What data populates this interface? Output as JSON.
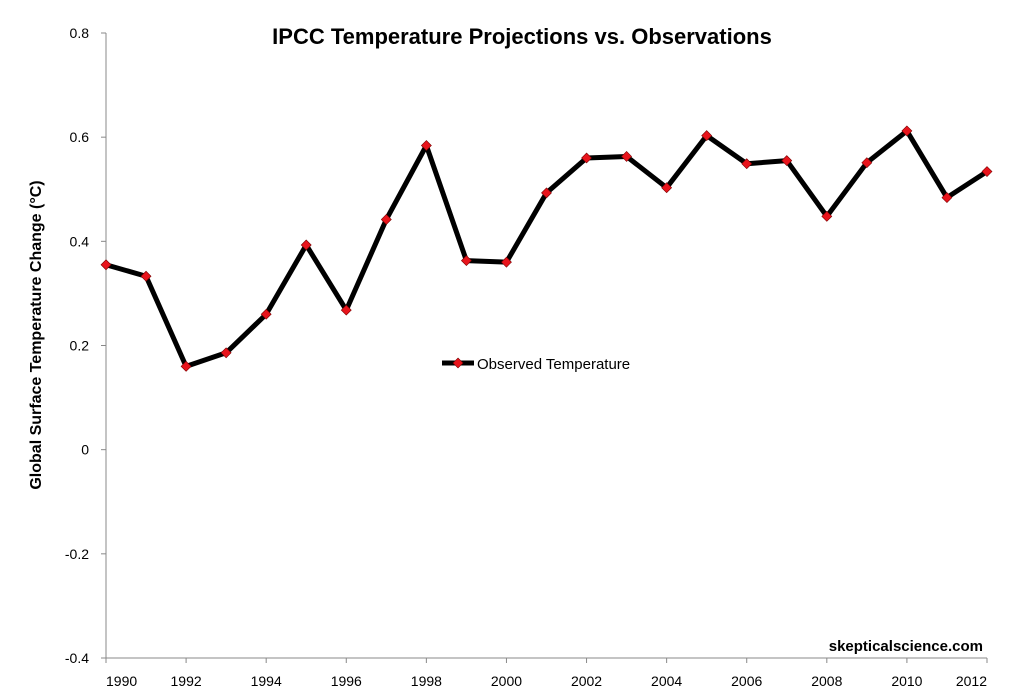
{
  "chart_data": {
    "type": "line",
    "title": "IPCC Temperature Projections vs. Observations",
    "xlabel": "",
    "ylabel": "Global Surface Temperature Change (°C)",
    "xlim": [
      1990,
      2012
    ],
    "ylim": [
      -0.4,
      0.8
    ],
    "x_ticks": [
      "1990",
      "1992",
      "1994",
      "1996",
      "1998",
      "2000",
      "2002",
      "2004",
      "2006",
      "2008",
      "2010",
      "2012"
    ],
    "y_ticks": [
      "0.8",
      "0.6",
      "0.4",
      "0.2",
      "0",
      "-0.2",
      "-0.4"
    ],
    "grid": false,
    "legend_position": "center",
    "x": [
      1990,
      1991,
      1992,
      1993,
      1994,
      1995,
      1996,
      1997,
      1998,
      1999,
      2000,
      2001,
      2002,
      2003,
      2004,
      2005,
      2006,
      2007,
      2008,
      2009,
      2010,
      2011,
      2012
    ],
    "series": [
      {
        "name": "Observed Temperature",
        "line_color": "#000000",
        "marker_color": "#e8141c",
        "values": [
          0.355,
          0.333,
          0.16,
          0.186,
          0.26,
          0.393,
          0.268,
          0.442,
          0.584,
          0.363,
          0.36,
          0.493,
          0.56,
          0.563,
          0.503,
          0.603,
          0.549,
          0.555,
          0.448,
          0.551,
          0.612,
          0.484,
          0.534
        ]
      }
    ],
    "watermark": "skepticalscience.com"
  }
}
